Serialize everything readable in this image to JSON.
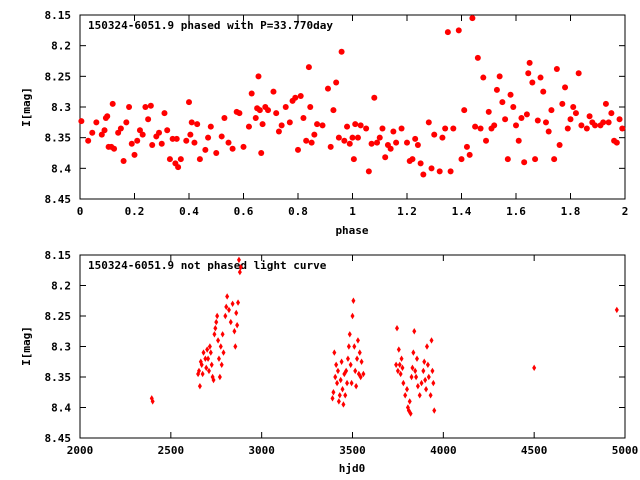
{
  "chart_data": [
    {
      "type": "scatter",
      "title": "150324-6051.9 phased with P=33.770day",
      "xlabel": "phase",
      "ylabel": "I[mag]",
      "xlim": [
        0,
        2
      ],
      "ylim": [
        8.45,
        8.15
      ],
      "y_inverted": true,
      "xticks": [
        "0",
        "0.2",
        "0.4",
        "0.6",
        "0.8",
        "1",
        "1.2",
        "1.4",
        "1.6",
        "1.8",
        "2"
      ],
      "yticks": [
        "8.15",
        "8.2",
        "8.25",
        "8.3",
        "8.35",
        "8.4",
        "8.45"
      ],
      "grid": false,
      "color": "#ff0000",
      "marker": "filled-circle",
      "points": [
        [
          0.005,
          8.323
        ],
        [
          0.03,
          8.355
        ],
        [
          0.045,
          8.342
        ],
        [
          0.06,
          8.325
        ],
        [
          0.08,
          8.345
        ],
        [
          0.09,
          8.338
        ],
        [
          0.095,
          8.318
        ],
        [
          0.1,
          8.315
        ],
        [
          0.105,
          8.365
        ],
        [
          0.115,
          8.365
        ],
        [
          0.12,
          8.295
        ],
        [
          0.125,
          8.368
        ],
        [
          0.14,
          8.342
        ],
        [
          0.15,
          8.335
        ],
        [
          0.16,
          8.388
        ],
        [
          0.17,
          8.325
        ],
        [
          0.18,
          8.3
        ],
        [
          0.19,
          8.36
        ],
        [
          0.2,
          8.378
        ],
        [
          0.21,
          8.355
        ],
        [
          0.22,
          8.338
        ],
        [
          0.23,
          8.345
        ],
        [
          0.24,
          8.3
        ],
        [
          0.25,
          8.32
        ],
        [
          0.26,
          8.298
        ],
        [
          0.265,
          8.362
        ],
        [
          0.28,
          8.348
        ],
        [
          0.29,
          8.342
        ],
        [
          0.3,
          8.36
        ],
        [
          0.31,
          8.31
        ],
        [
          0.32,
          8.338
        ],
        [
          0.33,
          8.385
        ],
        [
          0.34,
          8.352
        ],
        [
          0.35,
          8.392
        ],
        [
          0.355,
          8.352
        ],
        [
          0.36,
          8.398
        ],
        [
          0.37,
          8.385
        ],
        [
          0.39,
          8.355
        ],
        [
          0.4,
          8.292
        ],
        [
          0.405,
          8.345
        ],
        [
          0.41,
          8.325
        ],
        [
          0.42,
          8.358
        ],
        [
          0.43,
          8.328
        ],
        [
          0.44,
          8.385
        ],
        [
          0.46,
          8.37
        ],
        [
          0.47,
          8.35
        ],
        [
          0.48,
          8.332
        ],
        [
          0.5,
          8.375
        ],
        [
          0.52,
          8.348
        ],
        [
          0.53,
          8.318
        ],
        [
          0.545,
          8.358
        ],
        [
          0.56,
          8.368
        ],
        [
          0.575,
          8.308
        ],
        [
          0.585,
          8.31
        ],
        [
          0.6,
          8.365
        ],
        [
          0.62,
          8.332
        ],
        [
          0.63,
          8.278
        ],
        [
          0.645,
          8.318
        ],
        [
          0.65,
          8.302
        ],
        [
          0.655,
          8.25
        ],
        [
          0.66,
          8.305
        ],
        [
          0.665,
          8.375
        ],
        [
          0.67,
          8.328
        ],
        [
          0.68,
          8.3
        ],
        [
          0.69,
          8.305
        ],
        [
          0.71,
          8.275
        ],
        [
          0.72,
          8.31
        ],
        [
          0.73,
          8.34
        ],
        [
          0.74,
          8.33
        ],
        [
          0.755,
          8.3
        ],
        [
          0.77,
          8.325
        ],
        [
          0.78,
          8.29
        ],
        [
          0.79,
          8.285
        ],
        [
          0.8,
          8.37
        ],
        [
          0.81,
          8.282
        ],
        [
          0.82,
          8.318
        ],
        [
          0.83,
          8.355
        ],
        [
          0.84,
          8.235
        ],
        [
          0.845,
          8.3
        ],
        [
          0.85,
          8.358
        ],
        [
          0.86,
          8.345
        ],
        [
          0.87,
          8.328
        ],
        [
          0.89,
          8.33
        ],
        [
          0.91,
          8.27
        ],
        [
          0.92,
          8.365
        ],
        [
          0.93,
          8.305
        ],
        [
          0.94,
          8.26
        ],
        [
          0.95,
          8.35
        ],
        [
          0.96,
          8.21
        ],
        [
          0.97,
          8.355
        ],
        [
          0.98,
          8.332
        ],
        [
          0.99,
          8.36
        ],
        [
          1.0,
          8.35
        ],
        [
          1.005,
          8.385
        ],
        [
          1.01,
          8.328
        ],
        [
          1.02,
          8.35
        ],
        [
          1.03,
          8.33
        ],
        [
          1.05,
          8.335
        ],
        [
          1.06,
          8.405
        ],
        [
          1.07,
          8.36
        ],
        [
          1.08,
          8.285
        ],
        [
          1.09,
          8.358
        ],
        [
          1.1,
          8.35
        ],
        [
          1.11,
          8.335
        ],
        [
          1.12,
          8.382
        ],
        [
          1.13,
          8.362
        ],
        [
          1.14,
          8.368
        ],
        [
          1.15,
          8.34
        ],
        [
          1.16,
          8.358
        ],
        [
          1.18,
          8.335
        ],
        [
          1.2,
          8.358
        ],
        [
          1.21,
          8.388
        ],
        [
          1.22,
          8.385
        ],
        [
          1.23,
          8.352
        ],
        [
          1.24,
          8.362
        ],
        [
          1.25,
          8.392
        ],
        [
          1.26,
          8.41
        ],
        [
          1.28,
          8.325
        ],
        [
          1.29,
          8.4
        ],
        [
          1.3,
          8.345
        ],
        [
          1.32,
          8.405
        ],
        [
          1.33,
          8.35
        ],
        [
          1.34,
          8.335
        ],
        [
          1.35,
          8.178
        ],
        [
          1.36,
          8.405
        ],
        [
          1.37,
          8.335
        ],
        [
          1.39,
          8.175
        ],
        [
          1.4,
          8.385
        ],
        [
          1.41,
          8.305
        ],
        [
          1.42,
          8.365
        ],
        [
          1.43,
          8.378
        ],
        [
          1.44,
          8.155
        ],
        [
          1.45,
          8.332
        ],
        [
          1.46,
          8.22
        ],
        [
          1.47,
          8.335
        ],
        [
          1.48,
          8.252
        ],
        [
          1.49,
          8.355
        ],
        [
          1.5,
          8.308
        ],
        [
          1.51,
          8.335
        ],
        [
          1.52,
          8.33
        ],
        [
          1.53,
          8.272
        ],
        [
          1.54,
          8.25
        ],
        [
          1.55,
          8.292
        ],
        [
          1.56,
          8.32
        ],
        [
          1.57,
          8.385
        ],
        [
          1.58,
          8.28
        ],
        [
          1.59,
          8.3
        ],
        [
          1.6,
          8.33
        ],
        [
          1.61,
          8.355
        ],
        [
          1.62,
          8.318
        ],
        [
          1.63,
          8.39
        ],
        [
          1.64,
          8.312
        ],
        [
          1.645,
          8.245
        ],
        [
          1.65,
          8.228
        ],
        [
          1.66,
          8.26
        ],
        [
          1.67,
          8.385
        ],
        [
          1.68,
          8.322
        ],
        [
          1.69,
          8.252
        ],
        [
          1.7,
          8.275
        ],
        [
          1.71,
          8.325
        ],
        [
          1.72,
          8.34
        ],
        [
          1.73,
          8.305
        ],
        [
          1.74,
          8.385
        ],
        [
          1.75,
          8.238
        ],
        [
          1.76,
          8.362
        ],
        [
          1.77,
          8.295
        ],
        [
          1.78,
          8.268
        ],
        [
          1.79,
          8.335
        ],
        [
          1.8,
          8.32
        ],
        [
          1.81,
          8.3
        ],
        [
          1.82,
          8.31
        ],
        [
          1.83,
          8.245
        ],
        [
          1.84,
          8.33
        ],
        [
          1.86,
          8.335
        ],
        [
          1.87,
          8.315
        ],
        [
          1.88,
          8.325
        ],
        [
          1.89,
          8.33
        ],
        [
          1.91,
          8.33
        ],
        [
          1.92,
          8.325
        ],
        [
          1.93,
          8.295
        ],
        [
          1.94,
          8.325
        ],
        [
          1.95,
          8.31
        ],
        [
          1.96,
          8.355
        ],
        [
          1.97,
          8.358
        ],
        [
          1.98,
          8.32
        ],
        [
          1.99,
          8.335
        ]
      ]
    },
    {
      "type": "scatter",
      "title": "150324-6051.9 not phased light curve",
      "xlabel": "hjd0",
      "ylabel": "I[mag]",
      "xlim": [
        2000,
        5000
      ],
      "ylim": [
        8.45,
        8.15
      ],
      "y_inverted": true,
      "xticks": [
        "2000",
        "2500",
        "3000",
        "3500",
        "4000",
        "4500",
        "5000"
      ],
      "yticks": [
        "8.15",
        "8.2",
        "8.25",
        "8.3",
        "8.35",
        "8.4",
        "8.45"
      ],
      "grid": false,
      "color": "#ff0000",
      "marker": "filled-diamond",
      "points": [
        [
          2395,
          8.385
        ],
        [
          2400,
          8.39
        ],
        [
          2650,
          8.345
        ],
        [
          2655,
          8.34
        ],
        [
          2660,
          8.365
        ],
        [
          2665,
          8.325
        ],
        [
          2670,
          8.33
        ],
        [
          2675,
          8.345
        ],
        [
          2680,
          8.31
        ],
        [
          2690,
          8.32
        ],
        [
          2695,
          8.335
        ],
        [
          2700,
          8.305
        ],
        [
          2705,
          8.32
        ],
        [
          2710,
          8.34
        ],
        [
          2715,
          8.3
        ],
        [
          2720,
          8.31
        ],
        [
          2725,
          8.33
        ],
        [
          2730,
          8.35
        ],
        [
          2735,
          8.355
        ],
        [
          2740,
          8.28
        ],
        [
          2745,
          8.27
        ],
        [
          2750,
          8.26
        ],
        [
          2755,
          8.25
        ],
        [
          2760,
          8.29
        ],
        [
          2765,
          8.32
        ],
        [
          2770,
          8.35
        ],
        [
          2775,
          8.3
        ],
        [
          2780,
          8.33
        ],
        [
          2785,
          8.28
        ],
        [
          2790,
          8.31
        ],
        [
          2800,
          8.25
        ],
        [
          2805,
          8.235
        ],
        [
          2810,
          8.218
        ],
        [
          2820,
          8.24
        ],
        [
          2830,
          8.26
        ],
        [
          2840,
          8.23
        ],
        [
          2850,
          8.275
        ],
        [
          2855,
          8.3
        ],
        [
          2860,
          8.245
        ],
        [
          2865,
          8.265
        ],
        [
          2870,
          8.228
        ],
        [
          2875,
          8.158
        ],
        [
          2880,
          8.178
        ],
        [
          2885,
          8.17
        ],
        [
          3390,
          8.385
        ],
        [
          3395,
          8.375
        ],
        [
          3400,
          8.31
        ],
        [
          3405,
          8.35
        ],
        [
          3410,
          8.33
        ],
        [
          3415,
          8.36
        ],
        [
          3420,
          8.34
        ],
        [
          3425,
          8.39
        ],
        [
          3430,
          8.38
        ],
        [
          3435,
          8.355
        ],
        [
          3440,
          8.325
        ],
        [
          3445,
          8.37
        ],
        [
          3450,
          8.395
        ],
        [
          3455,
          8.345
        ],
        [
          3460,
          8.38
        ],
        [
          3465,
          8.34
        ],
        [
          3470,
          8.36
        ],
        [
          3475,
          8.32
        ],
        [
          3480,
          8.3
        ],
        [
          3485,
          8.28
        ],
        [
          3490,
          8.33
        ],
        [
          3495,
          8.36
        ],
        [
          3500,
          8.25
        ],
        [
          3505,
          8.225
        ],
        [
          3510,
          8.3
        ],
        [
          3515,
          8.34
        ],
        [
          3520,
          8.365
        ],
        [
          3525,
          8.32
        ],
        [
          3530,
          8.29
        ],
        [
          3535,
          8.345
        ],
        [
          3540,
          8.31
        ],
        [
          3545,
          8.35
        ],
        [
          3550,
          8.325
        ],
        [
          3560,
          8.345
        ],
        [
          3740,
          8.33
        ],
        [
          3745,
          8.27
        ],
        [
          3750,
          8.34
        ],
        [
          3755,
          8.305
        ],
        [
          3760,
          8.33
        ],
        [
          3765,
          8.345
        ],
        [
          3770,
          8.32
        ],
        [
          3775,
          8.335
        ],
        [
          3780,
          8.36
        ],
        [
          3790,
          8.38
        ],
        [
          3800,
          8.37
        ],
        [
          3805,
          8.4
        ],
        [
          3810,
          8.405
        ],
        [
          3815,
          8.39
        ],
        [
          3820,
          8.41
        ],
        [
          3825,
          8.35
        ],
        [
          3830,
          8.335
        ],
        [
          3835,
          8.31
        ],
        [
          3840,
          8.275
        ],
        [
          3845,
          8.34
        ],
        [
          3850,
          8.35
        ],
        [
          3855,
          8.32
        ],
        [
          3860,
          8.365
        ],
        [
          3870,
          8.38
        ],
        [
          3880,
          8.36
        ],
        [
          3890,
          8.34
        ],
        [
          3895,
          8.325
        ],
        [
          3900,
          8.355
        ],
        [
          3905,
          8.37
        ],
        [
          3910,
          8.3
        ],
        [
          3915,
          8.33
        ],
        [
          3920,
          8.35
        ],
        [
          3930,
          8.38
        ],
        [
          3935,
          8.29
        ],
        [
          3940,
          8.34
        ],
        [
          3945,
          8.36
        ],
        [
          3950,
          8.405
        ],
        [
          4500,
          8.335
        ],
        [
          4955,
          8.24
        ]
      ]
    }
  ]
}
